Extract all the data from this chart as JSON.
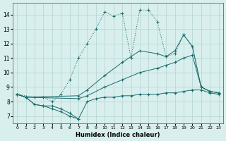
{
  "xlabel": "Humidex (Indice chaleur)",
  "xlim": [
    -0.5,
    23.5
  ],
  "ylim": [
    6.5,
    14.8
  ],
  "yticks": [
    7,
    8,
    9,
    10,
    11,
    12,
    13,
    14
  ],
  "xticks": [
    0,
    1,
    2,
    3,
    4,
    5,
    6,
    7,
    8,
    9,
    10,
    11,
    12,
    13,
    14,
    15,
    16,
    17,
    18,
    19,
    20,
    21,
    22,
    23
  ],
  "bg_color": "#d8efed",
  "line_color": "#1a6b6b",
  "grid_color": "#b8d8d6",
  "series": [
    {
      "x": [
        0,
        2,
        3,
        4,
        5,
        6,
        7,
        8,
        9,
        10,
        11,
        12,
        13,
        14,
        15,
        16,
        17,
        18,
        19,
        20,
        21,
        22,
        23
      ],
      "y": [
        8.5,
        8.3,
        8.3,
        8.0,
        8.5,
        9.5,
        11.0,
        12.0,
        13.0,
        14.2,
        13.9,
        14.1,
        11.0,
        14.3,
        14.3,
        13.5,
        11.1,
        11.3,
        12.6,
        11.8,
        9.0,
        8.7,
        8.6
      ]
    },
    {
      "x": [
        0,
        1,
        7,
        8,
        10,
        12,
        14,
        16,
        17,
        18,
        19,
        20,
        21,
        22,
        23
      ],
      "y": [
        8.5,
        8.3,
        8.4,
        8.8,
        9.8,
        10.7,
        11.5,
        11.3,
        11.1,
        11.5,
        12.6,
        11.8,
        9.0,
        8.7,
        8.6
      ]
    },
    {
      "x": [
        0,
        1,
        7,
        8,
        10,
        12,
        14,
        16,
        17,
        18,
        19,
        20,
        21,
        22,
        23
      ],
      "y": [
        8.5,
        8.3,
        8.2,
        8.4,
        9.0,
        9.5,
        10.0,
        10.3,
        10.5,
        10.7,
        11.0,
        11.2,
        9.0,
        8.7,
        8.6
      ]
    },
    {
      "x": [
        0,
        1,
        2,
        3,
        4,
        5,
        6,
        7,
        8,
        9,
        10,
        11,
        12,
        13,
        14,
        15,
        16,
        17,
        18,
        19,
        20,
        21,
        22,
        23
      ],
      "y": [
        8.5,
        8.3,
        7.8,
        7.7,
        7.7,
        7.5,
        7.2,
        6.8,
        8.0,
        8.2,
        8.3,
        8.3,
        8.4,
        8.4,
        8.5,
        8.5,
        8.5,
        8.6,
        8.6,
        8.7,
        8.8,
        8.8,
        8.6,
        8.5
      ]
    },
    {
      "x": [
        0,
        1,
        2,
        3,
        4,
        5,
        6,
        7
      ],
      "y": [
        8.5,
        8.3,
        7.8,
        7.7,
        7.5,
        7.3,
        7.0,
        6.8
      ]
    }
  ]
}
